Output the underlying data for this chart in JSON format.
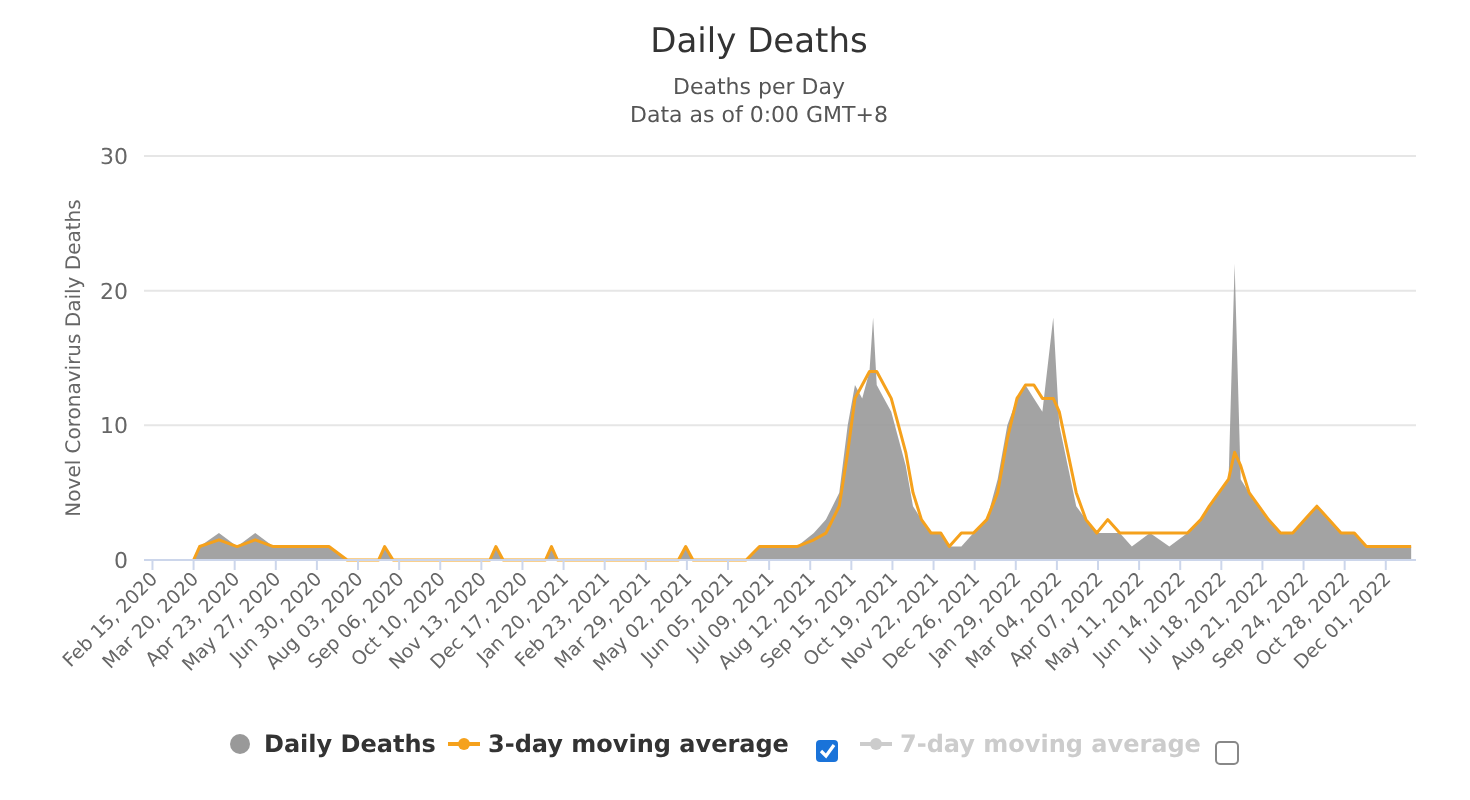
{
  "chart_data": {
    "type": "line",
    "title": "Daily Deaths",
    "subtitle": "Deaths per Day\nData as of 0:00 GMT+8",
    "ylabel": "Novel Coronavirus Daily Deaths",
    "x": [
      "2020-03-20",
      "2020-03-25",
      "2020-04-10",
      "2020-04-25",
      "2020-05-10",
      "2020-05-25",
      "2020-06-10",
      "2020-06-25",
      "2020-07-10",
      "2020-07-25",
      "2020-08-20",
      "2020-08-25",
      "2020-09-01",
      "2020-11-20",
      "2020-11-25",
      "2020-12-01",
      "2021-01-05",
      "2021-01-10",
      "2021-01-15",
      "2021-04-25",
      "2021-05-01",
      "2021-05-07",
      "2021-06-20",
      "2021-07-01",
      "2021-07-15",
      "2021-08-01",
      "2021-08-15",
      "2021-08-25",
      "2021-09-05",
      "2021-09-12",
      "2021-09-18",
      "2021-09-24",
      "2021-09-30",
      "2021-10-03",
      "2021-10-06",
      "2021-10-12",
      "2021-10-18",
      "2021-10-24",
      "2021-10-30",
      "2021-11-05",
      "2021-11-12",
      "2021-11-20",
      "2021-11-28",
      "2021-12-05",
      "2021-12-15",
      "2021-12-25",
      "2022-01-05",
      "2022-01-14",
      "2022-01-22",
      "2022-01-30",
      "2022-02-06",
      "2022-02-13",
      "2022-02-20",
      "2022-03-01",
      "2022-03-06",
      "2022-03-13",
      "2022-03-20",
      "2022-03-28",
      "2022-04-06",
      "2022-04-15",
      "2022-04-25",
      "2022-05-05",
      "2022-05-20",
      "2022-06-05",
      "2022-06-20",
      "2022-07-01",
      "2022-07-08",
      "2022-07-16",
      "2022-07-24",
      "2022-07-29",
      "2022-08-03",
      "2022-08-10",
      "2022-08-18",
      "2022-08-26",
      "2022-09-05",
      "2022-09-15",
      "2022-09-25",
      "2022-10-05",
      "2022-10-15",
      "2022-10-25",
      "2022-11-05",
      "2022-11-15",
      "2022-11-25",
      "2022-12-05",
      "2022-12-15",
      "2022-12-22"
    ],
    "series": [
      {
        "name": "Daily Deaths",
        "type": "area",
        "color": "#999999",
        "values": [
          0,
          1,
          2,
          1,
          2,
          1,
          1,
          1,
          1,
          0,
          0,
          1,
          0,
          0,
          1,
          0,
          0,
          1,
          0,
          0,
          1,
          0,
          0,
          1,
          1,
          1,
          2,
          3,
          5,
          10,
          13,
          12,
          14,
          18,
          13,
          12,
          11,
          9,
          7,
          4,
          3,
          2,
          2,
          1,
          1,
          2,
          3,
          6,
          10,
          12,
          13,
          12,
          11,
          18,
          10,
          7,
          4,
          3,
          2,
          2,
          2,
          1,
          2,
          1,
          2,
          3,
          4,
          5,
          6,
          22,
          6,
          5,
          4,
          3,
          2,
          2,
          3,
          4,
          3,
          2,
          2,
          1,
          1,
          1,
          1,
          1
        ]
      },
      {
        "name": "3-day moving average",
        "color": "#f5a11c",
        "values": [
          0,
          1,
          1.5,
          1,
          1.5,
          1,
          1,
          1,
          1,
          0,
          0,
          1,
          0,
          0,
          1,
          0,
          0,
          1,
          0,
          0,
          1,
          0,
          0,
          1,
          1,
          1,
          1.5,
          2,
          4,
          8,
          12,
          13,
          14,
          14,
          14,
          13,
          12,
          10,
          8,
          5,
          3,
          2,
          2,
          1,
          2,
          2,
          3,
          5,
          9,
          12,
          13,
          13,
          12,
          12,
          11,
          8,
          5,
          3,
          2,
          3,
          2,
          2,
          2,
          2,
          2,
          3,
          4,
          5,
          6,
          8,
          7,
          5,
          4,
          3,
          2,
          2,
          3,
          4,
          3,
          2,
          2,
          1,
          1,
          1,
          1,
          1
        ]
      },
      {
        "name": "7-day moving average",
        "type": "line",
        "color": "#cccccc",
        "values": [
          null,
          null,
          null,
          null,
          null,
          null,
          null,
          null,
          null,
          null,
          null,
          null,
          null,
          null,
          null,
          null,
          null,
          null,
          null,
          null,
          null,
          null,
          null,
          null,
          null,
          null,
          null,
          null,
          null,
          null,
          null,
          null,
          null,
          null,
          null,
          null,
          null,
          null,
          null,
          null,
          null,
          null,
          null,
          null,
          null,
          null,
          null,
          null,
          null,
          null,
          null,
          null,
          null,
          null,
          null,
          null,
          null,
          null,
          null,
          null,
          null,
          null,
          null,
          null,
          null,
          null,
          null,
          null,
          null,
          null,
          null,
          null,
          null,
          null,
          null,
          null,
          null,
          null,
          null,
          null,
          null,
          null,
          null,
          null,
          null,
          null
        ]
      }
    ],
    "xlim": [
      "2020-02-08",
      "2022-12-26"
    ],
    "xticks": [
      {
        "value": "2020-02-15",
        "label": "Feb 15, 2020"
      },
      {
        "value": "2020-03-20",
        "label": "Mar 20, 2020"
      },
      {
        "value": "2020-04-23",
        "label": "Apr 23, 2020"
      },
      {
        "value": "2020-05-27",
        "label": "May 27, 2020"
      },
      {
        "value": "2020-06-30",
        "label": "Jun 30, 2020"
      },
      {
        "value": "2020-08-03",
        "label": "Aug 03, 2020"
      },
      {
        "value": "2020-09-06",
        "label": "Sep 06, 2020"
      },
      {
        "value": "2020-10-10",
        "label": "Oct 10, 2020"
      },
      {
        "value": "2020-11-13",
        "label": "Nov 13, 2020"
      },
      {
        "value": "2020-12-17",
        "label": "Dec 17, 2020"
      },
      {
        "value": "2021-01-20",
        "label": "Jan 20, 2021"
      },
      {
        "value": "2021-02-23",
        "label": "Feb 23, 2021"
      },
      {
        "value": "2021-03-29",
        "label": "Mar 29, 2021"
      },
      {
        "value": "2021-05-02",
        "label": "May 02, 2021"
      },
      {
        "value": "2021-06-05",
        "label": "Jun 05, 2021"
      },
      {
        "value": "2021-07-09",
        "label": "Jul 09, 2021"
      },
      {
        "value": "2021-08-12",
        "label": "Aug 12, 2021"
      },
      {
        "value": "2021-09-15",
        "label": "Sep 15, 2021"
      },
      {
        "value": "2021-10-19",
        "label": "Oct 19, 2021"
      },
      {
        "value": "2021-11-22",
        "label": "Nov 22, 2021"
      },
      {
        "value": "2021-12-26",
        "label": "Dec 26, 2021"
      },
      {
        "value": "2022-01-29",
        "label": "Jan 29, 2022"
      },
      {
        "value": "2022-03-04",
        "label": "Mar 04, 2022"
      },
      {
        "value": "2022-04-07",
        "label": "Apr 07, 2022"
      },
      {
        "value": "2022-05-11",
        "label": "May 11, 2022"
      },
      {
        "value": "2022-06-14",
        "label": "Jun 14, 2022"
      },
      {
        "value": "2022-07-18",
        "label": "Jul 18, 2022"
      },
      {
        "value": "2022-08-21",
        "label": "Aug 21, 2022"
      },
      {
        "value": "2022-09-24",
        "label": "Sep 24, 2022"
      },
      {
        "value": "2022-10-28",
        "label": "Oct 28, 2022"
      },
      {
        "value": "2022-12-01",
        "label": "Dec 01, 2022"
      }
    ],
    "ylim": [
      0,
      30
    ],
    "yticks": [
      0,
      10,
      20,
      30
    ],
    "grid": "y",
    "legend": "bottom",
    "marker": "none",
    "line_style": "solid"
  }
}
